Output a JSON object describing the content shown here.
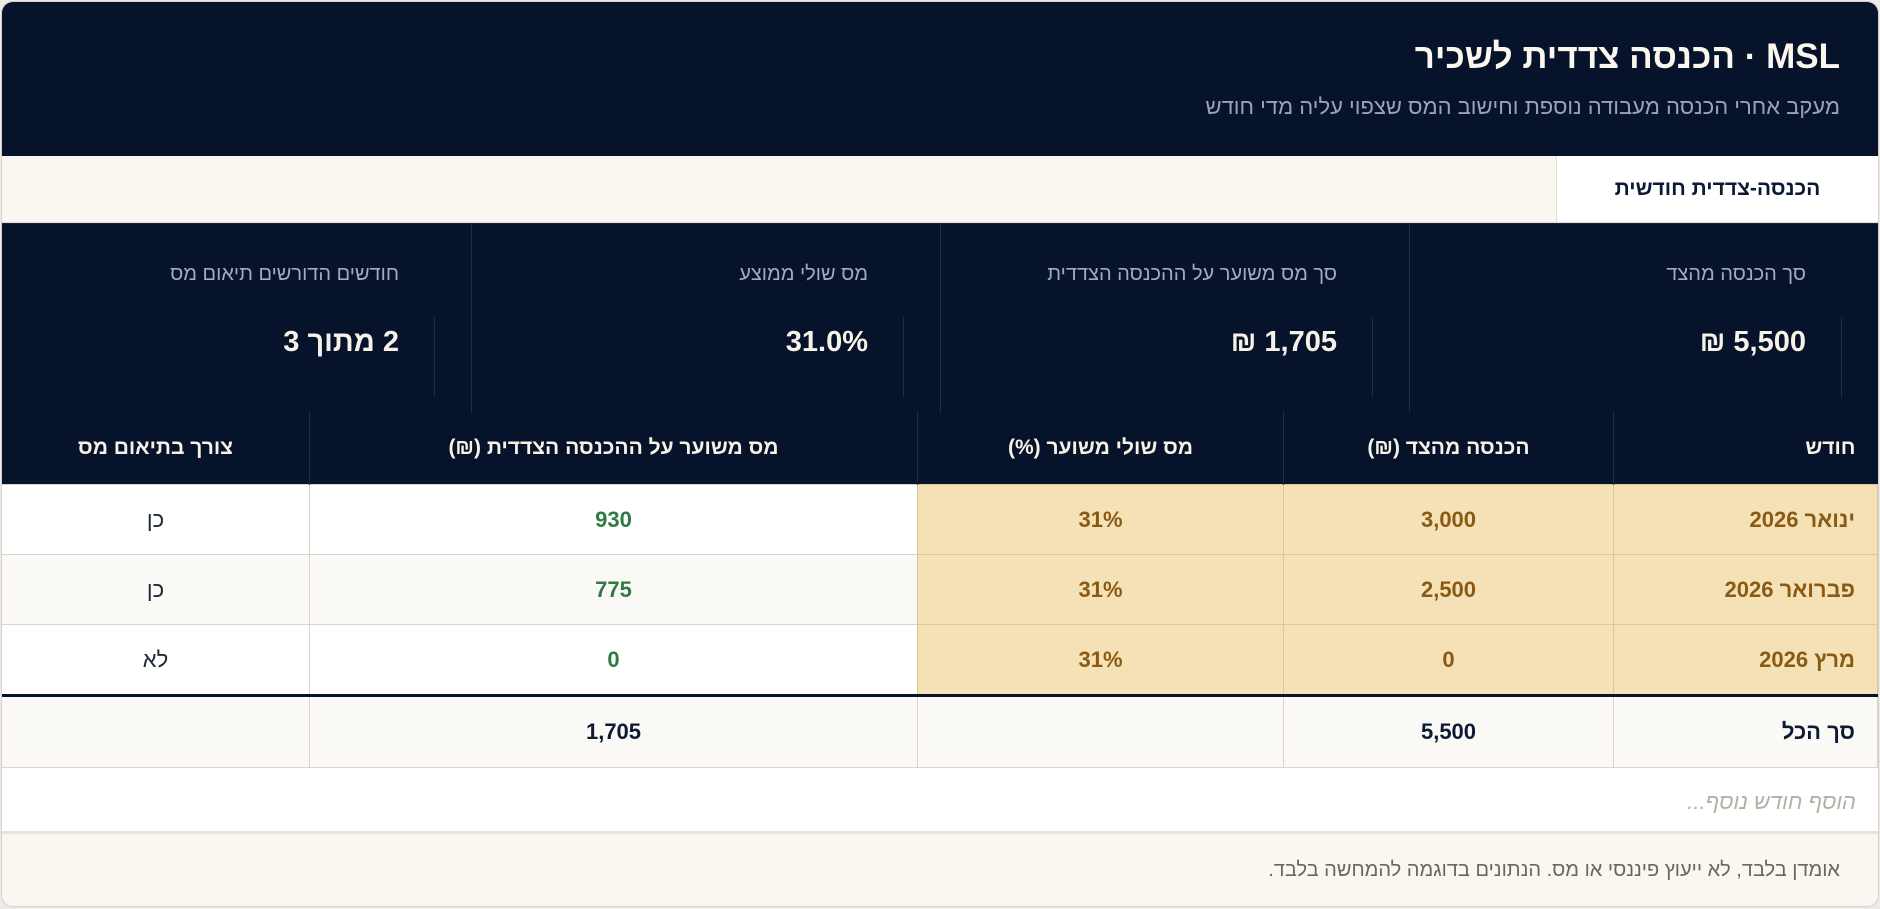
{
  "header": {
    "title": "MSL · הכנסה צדדית לשכיר",
    "subtitle": "מעקב אחרי הכנסה מעבודה נוספת וחישוב המס שצפוי עליה מדי חודש"
  },
  "tabs": [
    {
      "label": "הכנסה-צדדית חודשית"
    }
  ],
  "kpis": [
    {
      "label": "סך הכנסה מהצד",
      "value": "5,500 ₪"
    },
    {
      "label": "סך מס משוער על ההכנסה הצדדית",
      "value": "1,705 ₪"
    },
    {
      "label": "מס שולי ממוצע",
      "value": "31.0%"
    },
    {
      "label": "חודשים הדורשים תיאום מס",
      "value": "2 מתוך 3"
    }
  ],
  "table": {
    "columns": [
      "חודש",
      "הכנסה מהצד (₪)",
      "מס שולי משוער (%)",
      "מס משוער על ההכנסה הצדדית (₪)",
      "צורך בתיאום מס"
    ],
    "rows": [
      {
        "month": "ינואר 2026",
        "income": "3,000",
        "rate": "31%",
        "tax": "930",
        "need": "כן"
      },
      {
        "month": "פברואר 2026",
        "income": "2,500",
        "rate": "31%",
        "tax": "775",
        "need": "כן"
      },
      {
        "month": "מרץ 2026",
        "income": "0",
        "rate": "31%",
        "tax": "0",
        "need": "לא"
      }
    ],
    "total": {
      "label": "סך הכל",
      "income": "5,500",
      "rate": "",
      "tax": "1,705",
      "need": ""
    }
  },
  "add_row_placeholder": "הוסף חודש נוסף...",
  "footer": "אומדן בלבד, לא ייעוץ פיננסי או מס. הנתונים בדוגמה להמחשה בלבד.",
  "colors": {
    "navy": "#07132a",
    "highlight": "#f5e1b6",
    "highlight_text": "#8a5a15",
    "tax_green": "#2f7a43"
  }
}
